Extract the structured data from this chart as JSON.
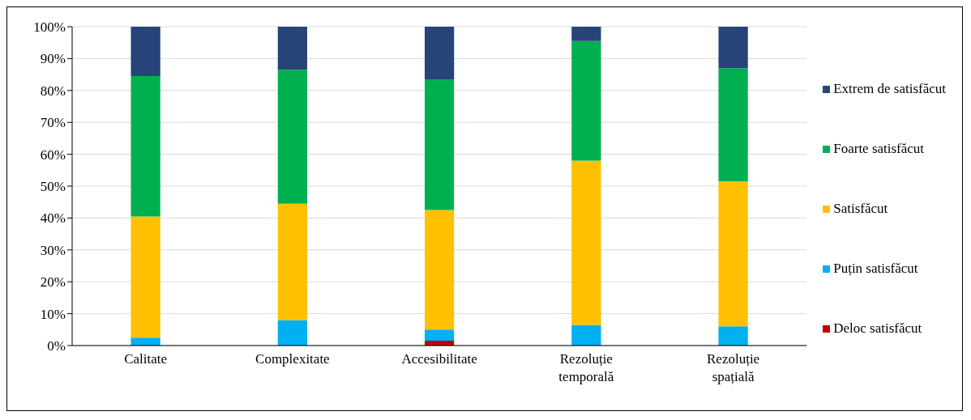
{
  "chart_data": {
    "type": "bar",
    "stacked": true,
    "categories": [
      "Calitate",
      "Complexitate",
      "Accesibilitate",
      "Rezoluție temporală",
      "Rezoluție spațială"
    ],
    "series": [
      {
        "name": "Deloc satisfăcut",
        "color": "#c00000",
        "values": [
          0,
          0,
          1.5,
          0,
          0
        ]
      },
      {
        "name": "Puțin satisfăcut",
        "color": "#00b0f0",
        "values": [
          2.5,
          8,
          3.5,
          6.5,
          6
        ]
      },
      {
        "name": "Satisfăcut",
        "color": "#ffc000",
        "values": [
          38,
          36.5,
          37.5,
          51.5,
          45.5
        ]
      },
      {
        "name": "Foarte satisfăcut",
        "color": "#00b050",
        "values": [
          44,
          42,
          41,
          37.5,
          35.5
        ]
      },
      {
        "name": "Extrem de satisfăcut",
        "color": "#264478",
        "values": [
          15.5,
          13.5,
          16.5,
          4.5,
          13
        ]
      }
    ],
    "ylim": [
      0,
      100
    ],
    "yticks": [
      {
        "value": 0,
        "label": "0%"
      },
      {
        "value": 10,
        "label": "10%"
      },
      {
        "value": 20,
        "label": "20%"
      },
      {
        "value": 30,
        "label": "30%"
      },
      {
        "value": 40,
        "label": "40%"
      },
      {
        "value": 50,
        "label": "50%"
      },
      {
        "value": 60,
        "label": "60%"
      },
      {
        "value": 70,
        "label": "70%"
      },
      {
        "value": 80,
        "label": "80%"
      },
      {
        "value": 90,
        "label": "90%"
      },
      {
        "value": 100,
        "label": "100%"
      }
    ],
    "grid": "y",
    "legend": "right"
  }
}
